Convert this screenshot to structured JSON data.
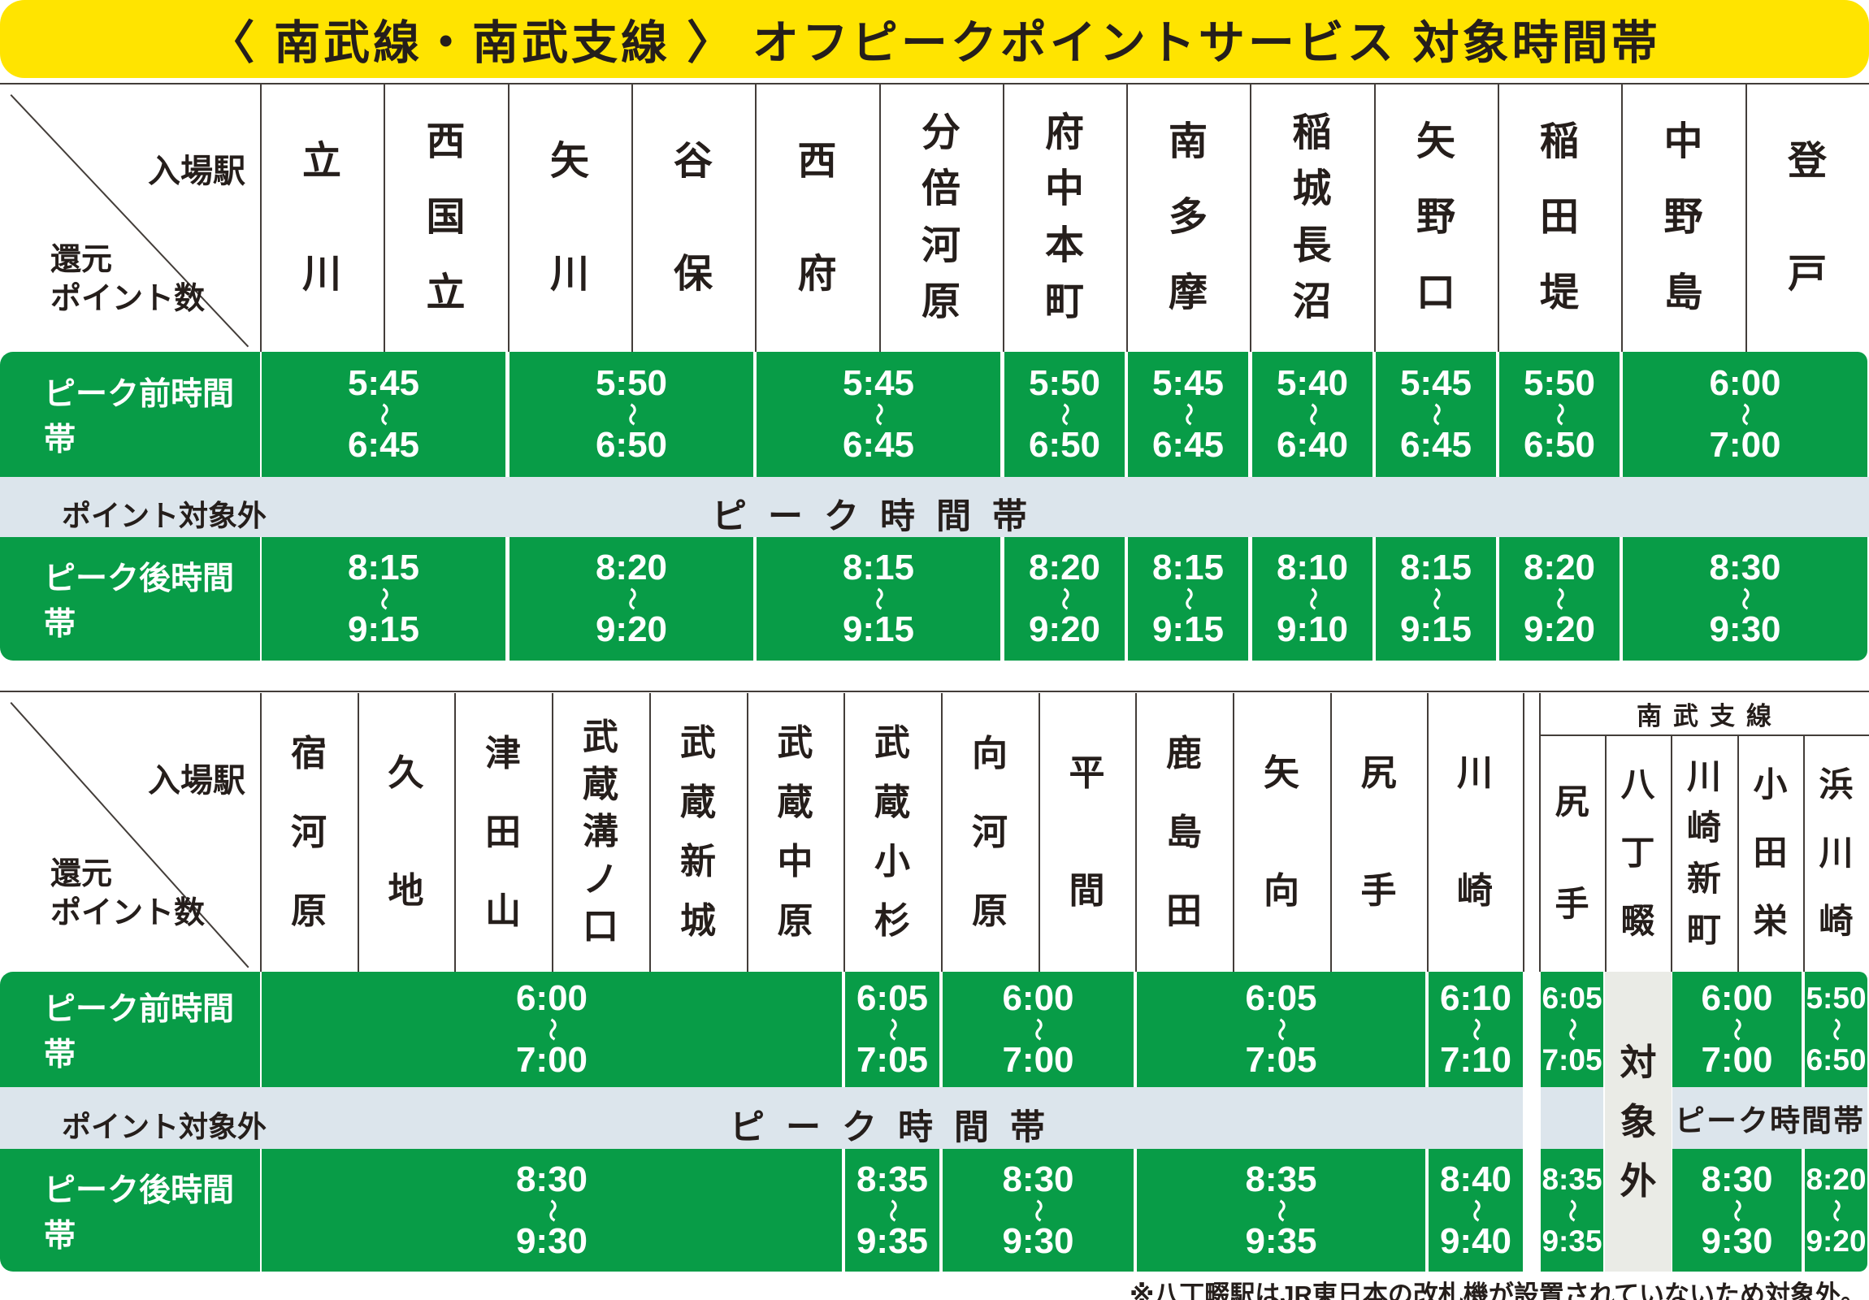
{
  "title": "〈 南武線・南武支線 〉 オフピークポイントサービス 対象時間帯",
  "colors": {
    "green": "#089c47",
    "gray_blue_band": "#dce5ec",
    "excluded_gray": "#eaebe6",
    "title_yellow": "#ffe400",
    "text_black": "#251e1b"
  },
  "labels": {
    "entry_station": "入場駅",
    "return_points": "還元\nポイント数",
    "pre_peak": "ピーク前時間帯",
    "post_peak": "ピーク後時間帯",
    "not_eligible": "ポイント対象外",
    "peak": "ピーク時間帯",
    "branch_title": "南武支線",
    "branch_excluded": "対象外",
    "branch_peak": "ピーク時間帯",
    "wave": "〜"
  },
  "footnote": "※八丁畷駅はJR東日本の改札機が設置されていないため対象外。",
  "table1": {
    "stations": [
      "立川",
      "西国立",
      "矢川",
      "谷保",
      "西府",
      "分倍河原",
      "府中本町",
      "南多摩",
      "稲城長沼",
      "矢野口",
      "稲田堤",
      "中野島",
      "登戸"
    ],
    "pre_peak": [
      {
        "start": "5:45",
        "end": "6:45",
        "cols": 2
      },
      {
        "start": "5:50",
        "end": "6:50",
        "cols": 2
      },
      {
        "start": "5:45",
        "end": "6:45",
        "cols": 2
      },
      {
        "start": "5:50",
        "end": "6:50",
        "cols": 1
      },
      {
        "start": "5:45",
        "end": "6:45",
        "cols": 1
      },
      {
        "start": "5:40",
        "end": "6:40",
        "cols": 1
      },
      {
        "start": "5:45",
        "end": "6:45",
        "cols": 1
      },
      {
        "start": "5:50",
        "end": "6:50",
        "cols": 1
      },
      {
        "start": "6:00",
        "end": "7:00",
        "cols": 2
      }
    ],
    "post_peak": [
      {
        "start": "8:15",
        "end": "9:15",
        "cols": 2
      },
      {
        "start": "8:20",
        "end": "9:20",
        "cols": 2
      },
      {
        "start": "8:15",
        "end": "9:15",
        "cols": 2
      },
      {
        "start": "8:20",
        "end": "9:20",
        "cols": 1
      },
      {
        "start": "8:15",
        "end": "9:15",
        "cols": 1
      },
      {
        "start": "8:10",
        "end": "9:10",
        "cols": 1
      },
      {
        "start": "8:15",
        "end": "9:15",
        "cols": 1
      },
      {
        "start": "8:20",
        "end": "9:20",
        "cols": 1
      },
      {
        "start": "8:30",
        "end": "9:30",
        "cols": 2
      }
    ]
  },
  "table2": {
    "main_stations": [
      "宿河原",
      "久地",
      "津田山",
      "武蔵溝ノ口",
      "武蔵新城",
      "武蔵中原",
      "武蔵小杉",
      "向河原",
      "平間",
      "鹿島田",
      "矢向",
      "尻手",
      "川崎"
    ],
    "branch_stations": [
      "尻手",
      "八丁畷",
      "川崎新町",
      "小田栄",
      "浜川崎"
    ],
    "pre_peak": [
      {
        "start": "6:00",
        "end": "7:00",
        "cols": 6
      },
      {
        "start": "6:05",
        "end": "7:05",
        "cols": 1
      },
      {
        "start": "6:00",
        "end": "7:00",
        "cols": 2
      },
      {
        "start": "6:05",
        "end": "7:05",
        "cols": 3
      },
      {
        "start": "6:10",
        "end": "7:10",
        "cols": 1
      },
      {
        "start": "6:05",
        "end": "7:05",
        "cols": 1
      },
      {
        "start": "6:00",
        "end": "7:00",
        "cols": 2
      },
      {
        "start": "5:50",
        "end": "6:50",
        "cols": 1
      }
    ],
    "post_peak": [
      {
        "start": "8:30",
        "end": "9:30",
        "cols": 6
      },
      {
        "start": "8:35",
        "end": "9:35",
        "cols": 1
      },
      {
        "start": "8:30",
        "end": "9:30",
        "cols": 2
      },
      {
        "start": "8:35",
        "end": "9:35",
        "cols": 3
      },
      {
        "start": "8:40",
        "end": "9:40",
        "cols": 1
      },
      {
        "start": "8:35",
        "end": "9:35",
        "cols": 1
      },
      {
        "start": "8:30",
        "end": "9:30",
        "cols": 2
      },
      {
        "start": "8:20",
        "end": "9:20",
        "cols": 1
      }
    ]
  }
}
